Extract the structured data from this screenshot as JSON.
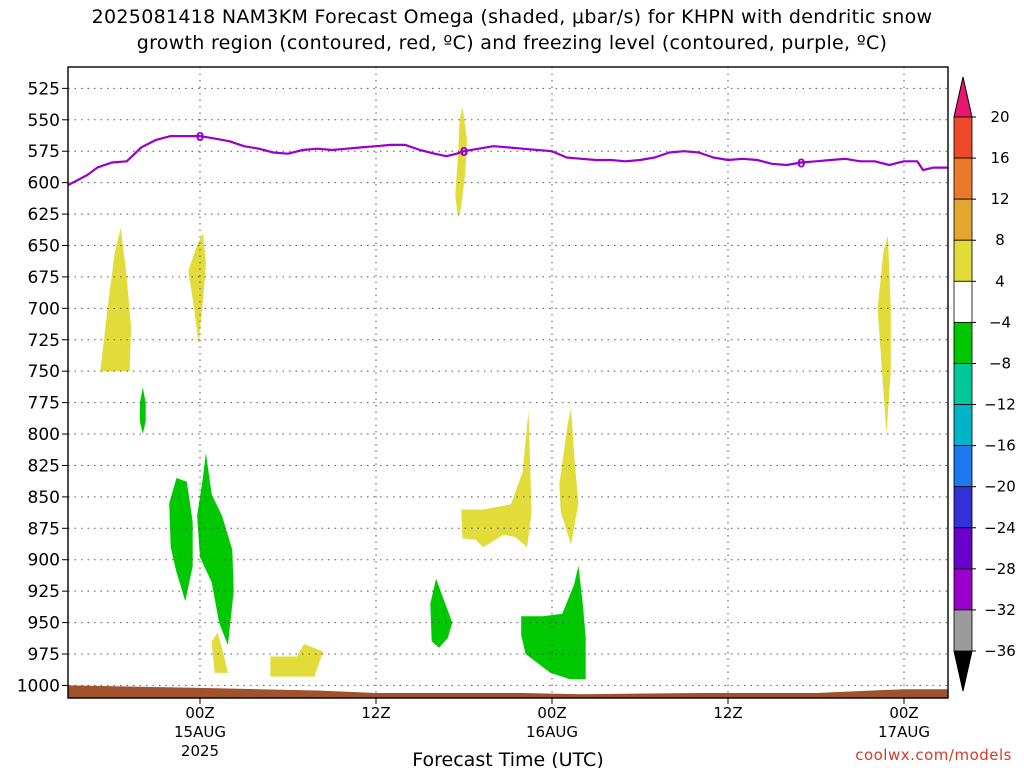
{
  "title_line1": "2025081418 NAM3KM Forecast Omega (shaded, μbar/s) for KHPN with dendritic snow",
  "title_line2": "growth region (contoured, red, ºC) and freezing level (contoured, purple, ºC)",
  "footer": "coolwx.com/models",
  "chart_data": {
    "type": "time-height cross-section",
    "title": "2025081418 NAM3KM Forecast Omega (shaded, μbar/s) for KHPN with dendritic snow growth region (contoured, red, ºC) and freezing level (contoured, purple, ºC)",
    "xlabel": "Forecast Time (UTC)",
    "ylabel": "",
    "x_unit": "hours since 2025-08-14 18Z",
    "xlim": [
      -3,
      57
    ],
    "y_unit": "hPa",
    "ylim": [
      1010,
      508
    ],
    "grid": true,
    "x_ticks": [
      {
        "x": 6,
        "label": "00Z",
        "sub1": "15AUG",
        "sub2": "2025"
      },
      {
        "x": 18,
        "label": "12Z",
        "sub1": "",
        "sub2": ""
      },
      {
        "x": 30,
        "label": "00Z",
        "sub1": "16AUG",
        "sub2": ""
      },
      {
        "x": 42,
        "label": "12Z",
        "sub1": "",
        "sub2": ""
      },
      {
        "x": 54,
        "label": "00Z",
        "sub1": "17AUG",
        "sub2": ""
      }
    ],
    "y_ticks": [
      525,
      550,
      575,
      600,
      625,
      650,
      675,
      700,
      725,
      750,
      775,
      800,
      825,
      850,
      875,
      900,
      925,
      950,
      975,
      1000
    ],
    "freezing_level": {
      "label": "0",
      "color": "#9900cc",
      "label_x": [
        6,
        24,
        47
      ],
      "points": [
        [
          -3,
          602
        ],
        [
          -1.7,
          594
        ],
        [
          -1,
          588
        ],
        [
          0,
          584
        ],
        [
          1,
          583
        ],
        [
          2,
          572
        ],
        [
          3,
          566
        ],
        [
          4,
          563
        ],
        [
          5,
          563
        ],
        [
          6,
          563
        ],
        [
          7,
          565
        ],
        [
          8,
          567
        ],
        [
          9,
          571
        ],
        [
          10,
          573
        ],
        [
          11,
          576
        ],
        [
          12,
          577
        ],
        [
          13,
          574
        ],
        [
          14,
          573
        ],
        [
          15,
          574
        ],
        [
          16,
          573
        ],
        [
          17,
          572
        ],
        [
          18,
          571
        ],
        [
          19,
          570
        ],
        [
          20,
          570
        ],
        [
          21,
          574
        ],
        [
          22,
          577
        ],
        [
          22.8,
          579
        ],
        [
          23.5,
          577
        ],
        [
          24,
          575
        ],
        [
          25,
          573
        ],
        [
          26,
          571
        ],
        [
          27,
          572
        ],
        [
          28,
          573
        ],
        [
          29,
          574
        ],
        [
          30,
          575
        ],
        [
          31,
          580
        ],
        [
          32,
          581
        ],
        [
          33,
          582
        ],
        [
          34,
          582
        ],
        [
          35,
          583
        ],
        [
          36,
          582
        ],
        [
          37,
          580
        ],
        [
          38,
          576
        ],
        [
          39,
          575
        ],
        [
          40,
          576
        ],
        [
          41,
          580
        ],
        [
          42,
          582
        ],
        [
          43,
          581
        ],
        [
          44,
          582
        ],
        [
          45,
          585
        ],
        [
          46,
          586
        ],
        [
          47,
          584
        ],
        [
          48,
          583
        ],
        [
          49,
          582
        ],
        [
          50,
          581
        ],
        [
          51,
          583
        ],
        [
          52,
          583
        ],
        [
          53,
          586
        ],
        [
          54,
          583
        ],
        [
          54.9,
          583
        ],
        [
          55.3,
          590
        ],
        [
          56,
          588
        ],
        [
          57,
          588
        ],
        [
          58,
          583
        ],
        [
          59,
          585
        ],
        [
          60,
          588
        ]
      ]
    },
    "surface": {
      "label": "ground",
      "color": "#a0522d",
      "pressure": [
        [
          -3,
          1000
        ],
        [
          6,
          1002
        ],
        [
          10,
          1003
        ],
        [
          14,
          1004
        ],
        [
          18,
          1006
        ],
        [
          24,
          1006
        ],
        [
          28,
          1006
        ],
        [
          32,
          1007
        ],
        [
          40,
          1006
        ],
        [
          48,
          1006
        ],
        [
          54,
          1003
        ],
        [
          57,
          1003
        ]
      ]
    },
    "shaded_regions": [
      {
        "level": "4 to 8",
        "color": "#e1dc3a",
        "points": [
          [
            -0.8,
            750
          ],
          [
            -0.3,
            700
          ],
          [
            0.2,
            655
          ],
          [
            0.6,
            636
          ],
          [
            1.0,
            675
          ],
          [
            1.3,
            715
          ],
          [
            1.2,
            750
          ]
        ]
      },
      {
        "level": "4 to 8",
        "color": "#e1dc3a",
        "points": [
          [
            5.2,
            670
          ],
          [
            5.8,
            650
          ],
          [
            6.2,
            640
          ],
          [
            6.4,
            665
          ],
          [
            6.2,
            695
          ],
          [
            5.9,
            728
          ],
          [
            5.6,
            700
          ]
        ]
      },
      {
        "level": "4 to 8",
        "color": "#e1dc3a",
        "points": [
          [
            6.8,
            965
          ],
          [
            7.2,
            958
          ],
          [
            7.6,
            975
          ],
          [
            7.9,
            990
          ],
          [
            7.0,
            990
          ]
        ]
      },
      {
        "level": "4 to 8",
        "color": "#e1dc3a",
        "points": [
          [
            10.8,
            977
          ],
          [
            12.6,
            977
          ],
          [
            13.1,
            967
          ],
          [
            14.4,
            973
          ],
          [
            13.8,
            993
          ],
          [
            10.8,
            993
          ]
        ]
      },
      {
        "level": "4 to 8",
        "color": "#e1dc3a",
        "points": [
          [
            23.4,
            610
          ],
          [
            23.6,
            578
          ],
          [
            23.7,
            550
          ],
          [
            23.9,
            540
          ],
          [
            24.2,
            565
          ],
          [
            24.1,
            590
          ],
          [
            23.8,
            620
          ],
          [
            23.6,
            628
          ]
        ]
      },
      {
        "level": "4 to 8",
        "color": "#e1dc3a",
        "points": [
          [
            23.8,
            860
          ],
          [
            25.3,
            860
          ],
          [
            27.2,
            856
          ],
          [
            28.0,
            830
          ],
          [
            28.2,
            805
          ],
          [
            28.4,
            782
          ],
          [
            28.5,
            820
          ],
          [
            28.6,
            862
          ],
          [
            28.3,
            890
          ],
          [
            27.5,
            882
          ],
          [
            26.7,
            880
          ],
          [
            25.3,
            890
          ],
          [
            24.8,
            884
          ],
          [
            23.9,
            883
          ]
        ]
      },
      {
        "level": "4 to 8",
        "color": "#e1dc3a",
        "points": [
          [
            30.5,
            840
          ],
          [
            30.8,
            815
          ],
          [
            31.1,
            790
          ],
          [
            31.3,
            780
          ],
          [
            31.5,
            815
          ],
          [
            31.8,
            855
          ],
          [
            31.3,
            888
          ],
          [
            30.6,
            862
          ]
        ]
      },
      {
        "level": "4 to 8",
        "color": "#e1dc3a",
        "points": [
          [
            52.2,
            700
          ],
          [
            52.6,
            655
          ],
          [
            52.9,
            642
          ],
          [
            53.1,
            700
          ],
          [
            53.1,
            750
          ],
          [
            52.8,
            800
          ],
          [
            52.5,
            750
          ]
        ]
      },
      {
        "level": "-8 to -4",
        "color": "#00c800",
        "points": [
          [
            1.9,
            775
          ],
          [
            2.1,
            763
          ],
          [
            2.3,
            775
          ],
          [
            2.3,
            790
          ],
          [
            2.1,
            800
          ],
          [
            1.9,
            790
          ]
        ]
      },
      {
        "level": "-8 to -4",
        "color": "#00c800",
        "points": [
          [
            3.9,
            855
          ],
          [
            4.4,
            835
          ],
          [
            5.1,
            838
          ],
          [
            5.5,
            870
          ],
          [
            5.5,
            905
          ],
          [
            5.0,
            933
          ],
          [
            4.4,
            910
          ],
          [
            4.0,
            890
          ]
        ]
      },
      {
        "level": "-8 to -4",
        "color": "#00c800",
        "points": [
          [
            5.8,
            865
          ],
          [
            6.2,
            835
          ],
          [
            6.4,
            815
          ],
          [
            6.8,
            848
          ],
          [
            7.5,
            865
          ],
          [
            8.2,
            892
          ],
          [
            8.3,
            925
          ],
          [
            7.9,
            968
          ],
          [
            7.3,
            950
          ],
          [
            6.8,
            918
          ],
          [
            6.0,
            898
          ]
        ]
      },
      {
        "level": "-8 to -4",
        "color": "#00c800",
        "points": [
          [
            21.7,
            935
          ],
          [
            22.1,
            915
          ],
          [
            22.5,
            928
          ],
          [
            23.2,
            950
          ],
          [
            22.9,
            962
          ],
          [
            22.3,
            970
          ],
          [
            21.8,
            965
          ]
        ]
      },
      {
        "level": "-8 to -4",
        "color": "#00c800",
        "points": [
          [
            27.9,
            945
          ],
          [
            29.4,
            945
          ],
          [
            30.7,
            943
          ],
          [
            31.5,
            920
          ],
          [
            31.8,
            905
          ],
          [
            32.1,
            935
          ],
          [
            32.3,
            962
          ],
          [
            32.3,
            995
          ],
          [
            31.2,
            995
          ],
          [
            29.9,
            990
          ],
          [
            28.2,
            975
          ],
          [
            27.9,
            960
          ]
        ]
      }
    ],
    "colorbar": {
      "bands": [
        {
          "color": "#9b9b9b",
          "from": -36,
          "to": -32
        },
        {
          "color": "#9900cc",
          "from": -32,
          "to": -28
        },
        {
          "color": "#6a00cc",
          "from": -28,
          "to": -24
        },
        {
          "color": "#3232d8",
          "from": -24,
          "to": -20
        },
        {
          "color": "#1e78f0",
          "from": -20,
          "to": -16
        },
        {
          "color": "#00b4c8",
          "from": -16,
          "to": -12
        },
        {
          "color": "#00c896",
          "from": -12,
          "to": -8
        },
        {
          "color": "#00c800",
          "from": -8,
          "to": -4
        },
        {
          "color": "#ffffff",
          "from": -4,
          "to": 4
        },
        {
          "color": "#e1dc3a",
          "from": 4,
          "to": 8
        },
        {
          "color": "#e3a631",
          "from": 8,
          "to": 12
        },
        {
          "color": "#e87a2a",
          "from": 12,
          "to": 16
        },
        {
          "color": "#ee4a2a",
          "from": 16,
          "to": 20
        }
      ],
      "top_triangle_color": "#e8166e",
      "bottom_triangle_color": "#000000",
      "labels": [
        "20",
        "16",
        "12",
        "8",
        "4",
        "−4",
        "−8",
        "−12",
        "−16",
        "−20",
        "−24",
        "−28",
        "−32",
        "−36"
      ]
    }
  }
}
